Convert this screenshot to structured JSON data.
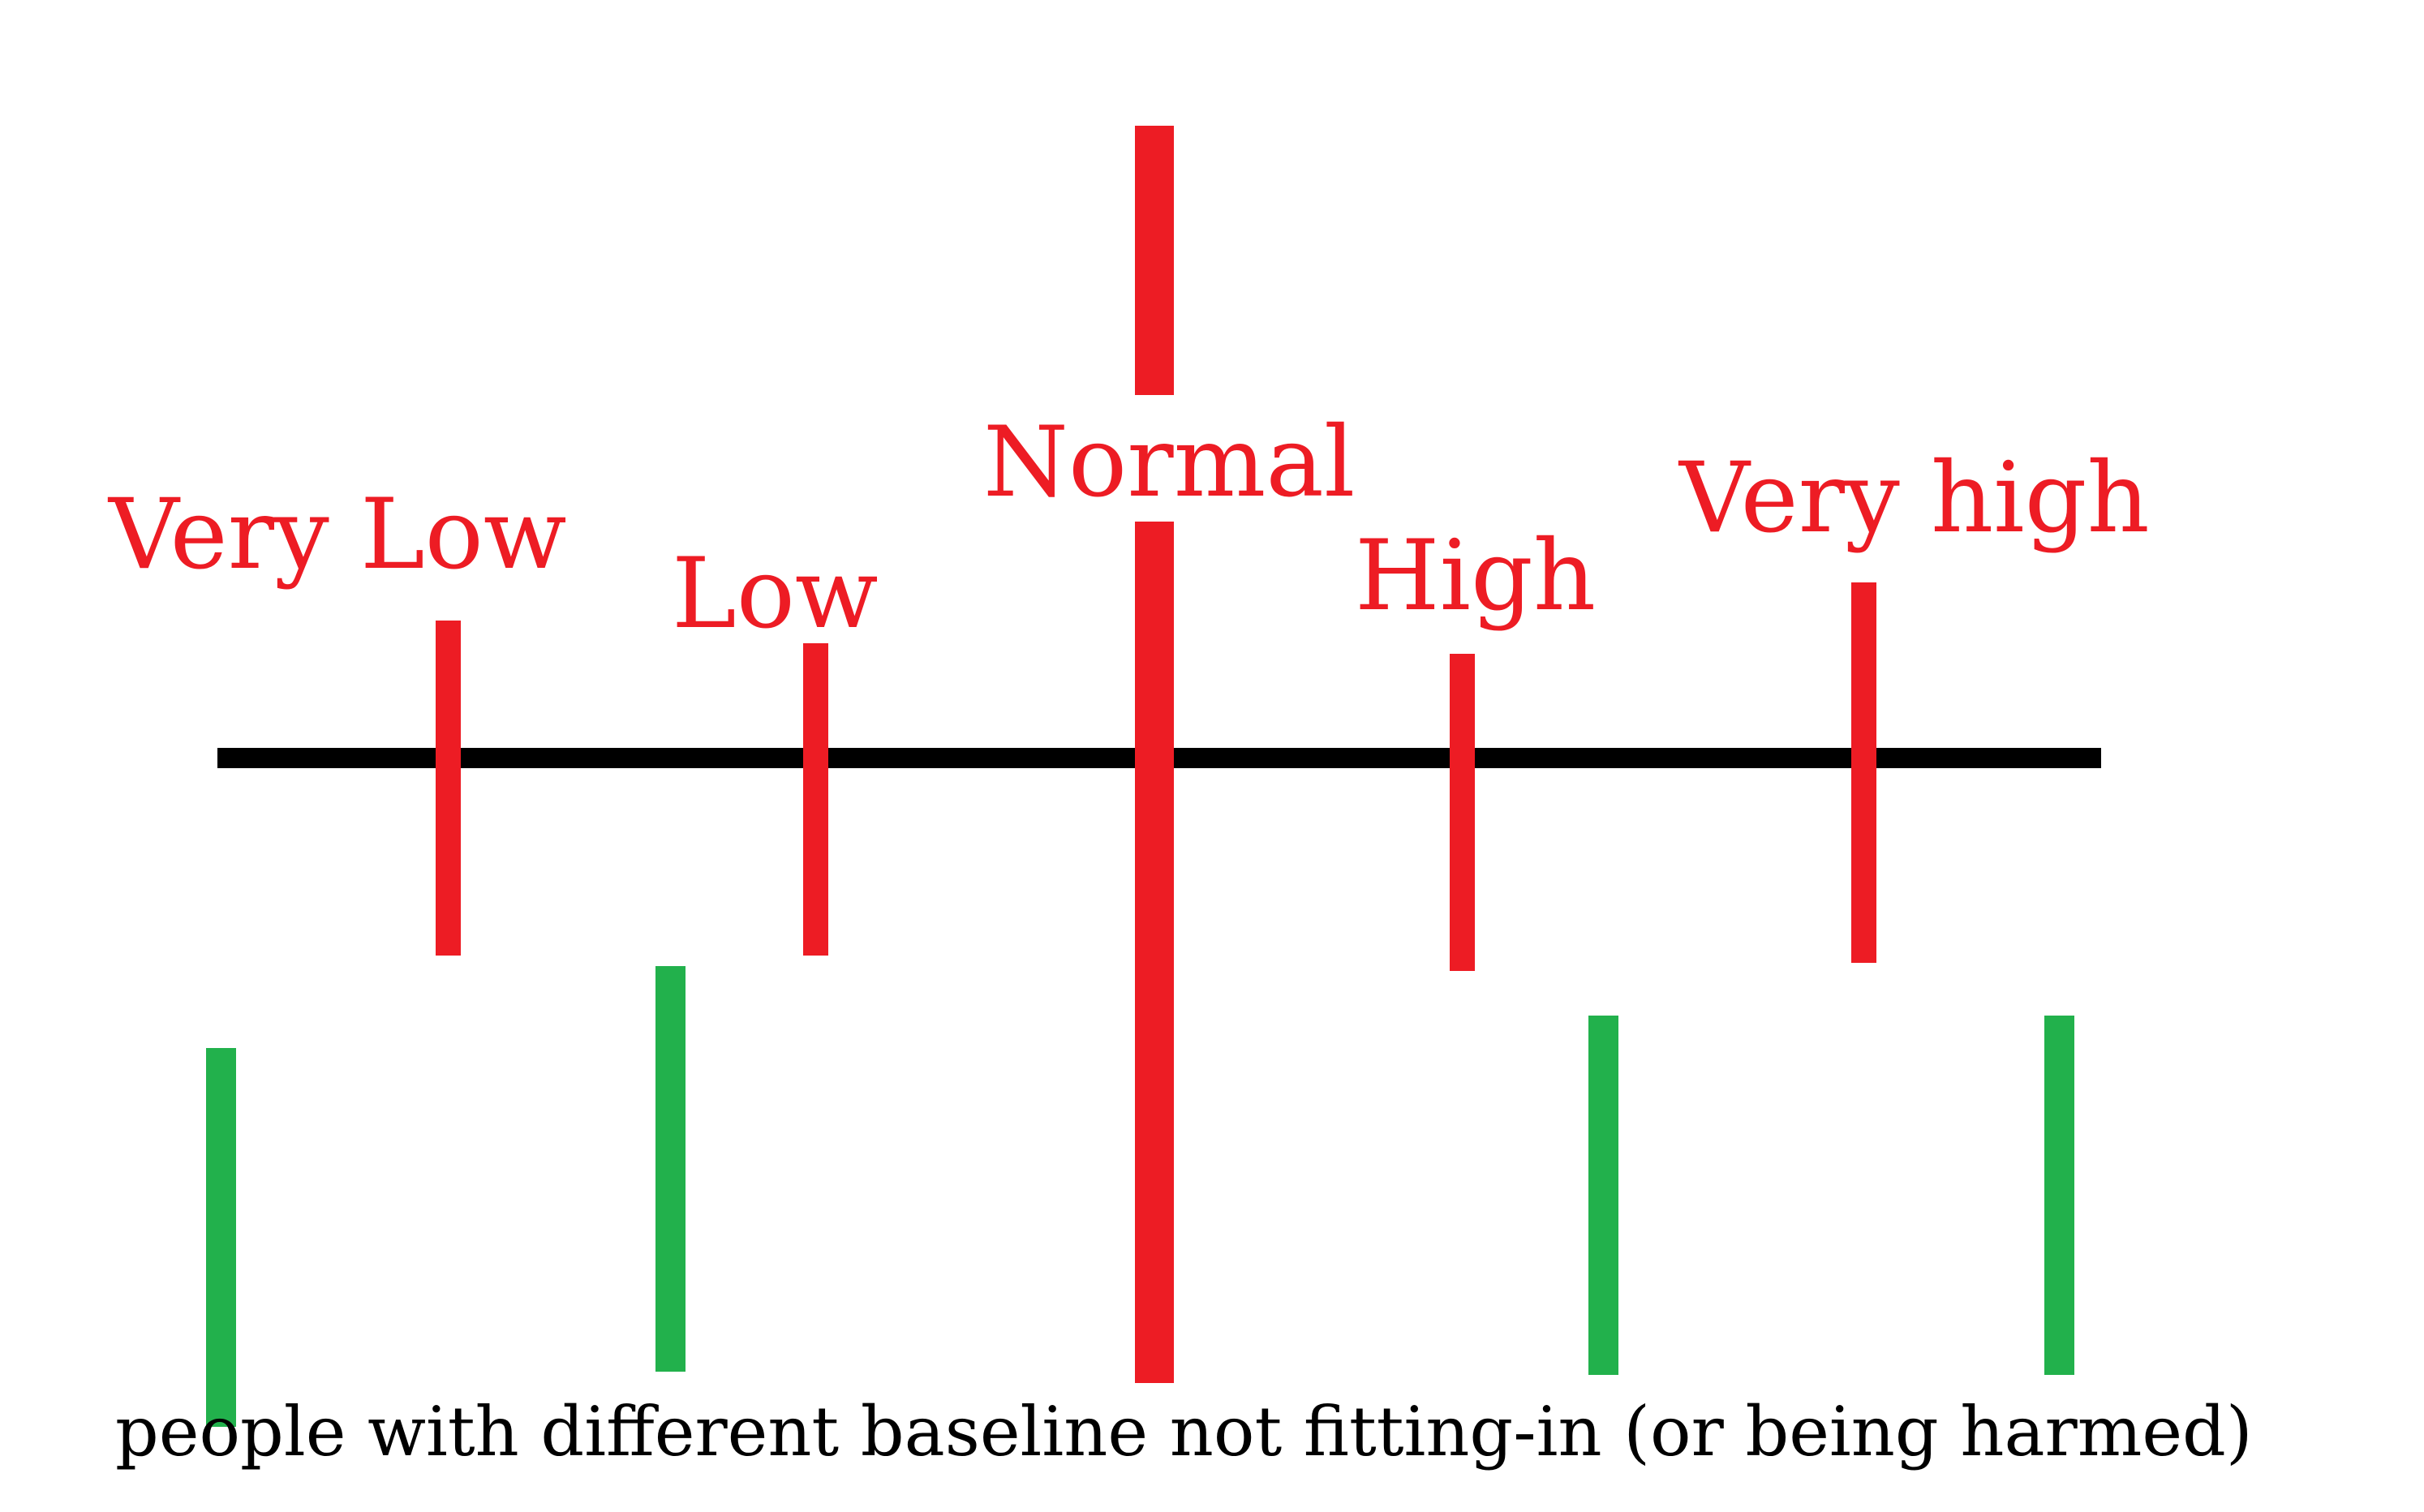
{
  "colors": {
    "background": "#ffffff",
    "axis": "#000000",
    "marker": "#ed1c24",
    "person": "#22b14c",
    "caption": "#000000"
  },
  "labels": {
    "very_low": "Very Low",
    "low": "Low",
    "normal": "Normal",
    "high": "High",
    "very_high": "Very high"
  },
  "caption": "people with different baseline not fitting-in (or being harmed)"
}
